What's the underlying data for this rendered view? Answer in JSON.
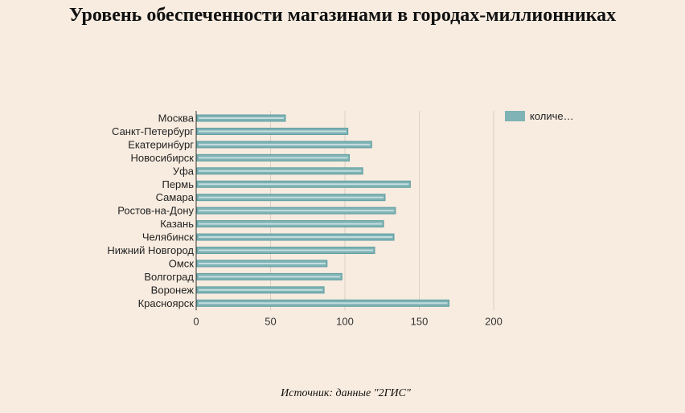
{
  "colors": {
    "background": "#f8ece0",
    "bar_fill": "#7fb3b5",
    "bar_stroke": "#5f9ea0",
    "grid": "#d8d0c6",
    "axis": "#333333"
  },
  "chart_data": {
    "type": "bar",
    "orientation": "horizontal",
    "title": "Уровень обеспеченности магазинами в городах-миллионниках",
    "categories": [
      "Москва",
      "Санкт-Петербург",
      "Екатеринбург",
      "Новосибирск",
      "Уфа",
      "Пермь",
      "Самара",
      "Ростов-на-Дону",
      "Казань",
      "Челябинск",
      "Нижний Новгород",
      "Омск",
      "Волгоград",
      "Воронеж",
      "Красноярск"
    ],
    "series": [
      {
        "name": "количе…",
        "values": [
          60,
          102,
          118,
          103,
          112,
          144,
          127,
          134,
          126,
          133,
          120,
          88,
          98,
          86,
          170
        ]
      }
    ],
    "xlim": [
      0,
      200
    ],
    "xticks": [
      "0",
      "50",
      "100",
      "150",
      "200"
    ],
    "grid": true,
    "legend_position": "top-right",
    "source": "Источник: данные \"2ГИС\""
  }
}
